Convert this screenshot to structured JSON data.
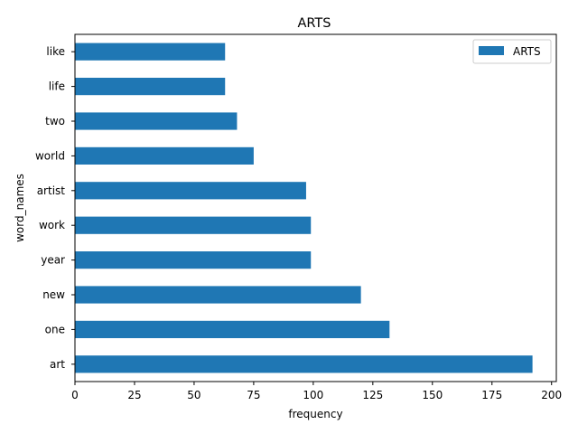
{
  "chart_data": {
    "type": "bar",
    "orientation": "horizontal",
    "title": "ARTS",
    "xlabel": "frequency",
    "ylabel": "word_names",
    "categories": [
      "art",
      "one",
      "new",
      "year",
      "work",
      "artist",
      "world",
      "two",
      "life",
      "like"
    ],
    "series": [
      {
        "name": "ARTS",
        "color": "#1f77b4",
        "values": [
          192,
          132,
          120,
          99,
          99,
          97,
          75,
          68,
          63,
          63
        ]
      }
    ],
    "xlim": [
      0,
      202
    ],
    "xticks": [
      0,
      25,
      50,
      75,
      100,
      125,
      150,
      175,
      200
    ],
    "grid": false,
    "legend_position": "top-right"
  }
}
